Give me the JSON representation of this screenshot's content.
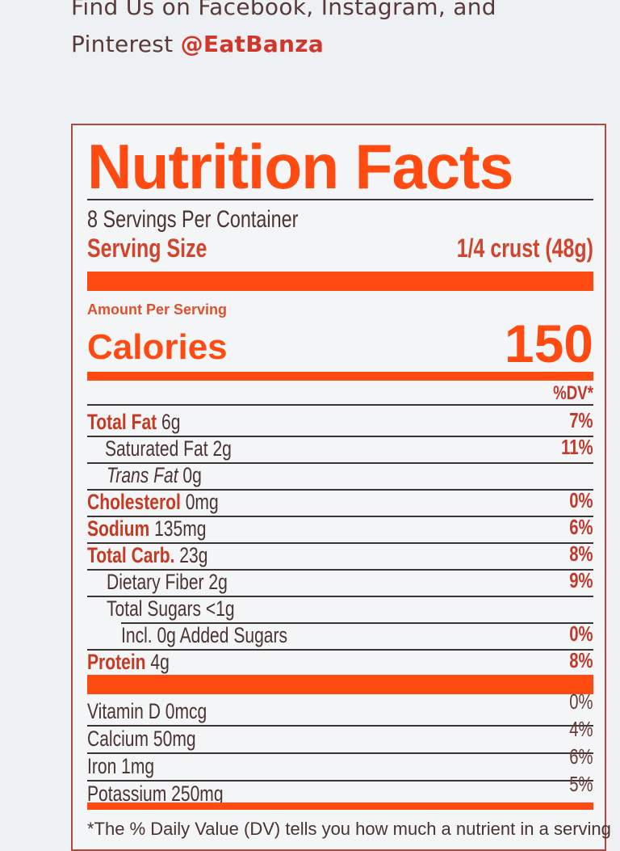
{
  "promo": {
    "line1": "Find Us on Facebook, Instagram, and",
    "line2_prefix": "Pinterest ",
    "handle": "@EatBanza"
  },
  "label": {
    "title": "Nutrition Facts",
    "servings_per_container": "8 Servings Per Container",
    "serving_size_label": "Serving Size",
    "serving_size_value": "1/4 crust (48g)",
    "amount_per_serving": "Amount Per Serving",
    "calories_label": "Calories",
    "calories_value": "150",
    "dv_header": "%DV*",
    "nutrients": [
      {
        "bold": "Total Fat",
        "name": "",
        "amount": " 6g",
        "dv": "7%"
      },
      {
        "bold": "",
        "name": "Saturated Fat",
        "amount": " 2g",
        "dv": "11%"
      },
      {
        "bold": "",
        "name": "Trans Fat",
        "amount": " 0g",
        "dv": ""
      },
      {
        "bold": "Cholesterol",
        "name": "",
        "amount": " 0mg",
        "dv": "0%"
      },
      {
        "bold": "Sodium",
        "name": "",
        "amount": " 135mg",
        "dv": "6%"
      },
      {
        "bold": "Total Carb.",
        "name": "",
        "amount": " 23g",
        "dv": "8%"
      },
      {
        "bold": "",
        "name": "Dietary Fiber",
        "amount": " 2g",
        "dv": "9%"
      },
      {
        "bold": "",
        "name": "Total Sugars",
        "amount": " <1g",
        "dv": ""
      },
      {
        "bold": "",
        "name": "Incl. 0g Added Sugars",
        "amount": "",
        "dv": "0%"
      },
      {
        "bold": "Protein",
        "name": "",
        "amount": " 4g",
        "dv": "8%"
      }
    ],
    "vitamins": [
      {
        "name": "Vitamin D 0mcg",
        "dv": "0%"
      },
      {
        "name": "Calcium 50mg",
        "dv": "4%"
      },
      {
        "name": "Iron 1mg",
        "dv": "6%"
      },
      {
        "name": "Potassium 250mg",
        "dv": "5%"
      }
    ],
    "footnote": "*The % Daily Value (DV) tells you how much a nutrient in a serving"
  },
  "colors": {
    "accent": "#ff4a12",
    "dark_red": "#c0392b",
    "border": "#b04a40",
    "text": "#4a3331",
    "background": "#eef1f4"
  }
}
